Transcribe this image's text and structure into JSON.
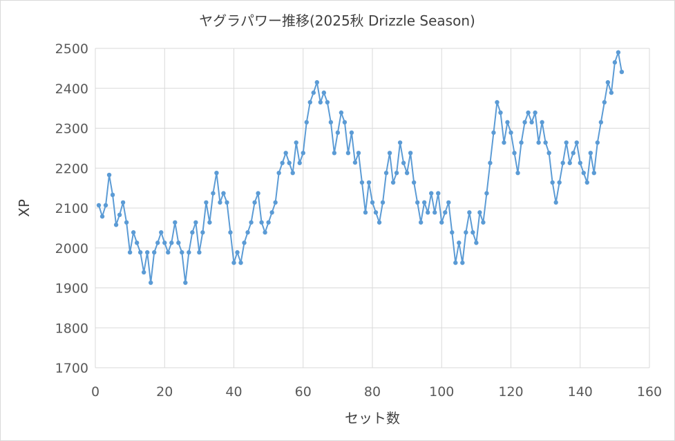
{
  "chart_data": {
    "type": "line",
    "title": "ヤグラパワー推移(2025秋 Drizzle Season)",
    "xlabel": "セット数",
    "ylabel": "XP",
    "xlim": [
      0,
      160
    ],
    "ylim": [
      1700,
      2500
    ],
    "x_ticks": [
      0,
      20,
      40,
      60,
      80,
      100,
      120,
      140,
      160
    ],
    "y_ticks": [
      1700,
      1800,
      1900,
      2000,
      2100,
      2200,
      2300,
      2400,
      2500
    ],
    "grid": true,
    "series_color": "#5b9bd5",
    "series": [
      {
        "name": "XP",
        "values": [
          2107,
          2079,
          2107,
          2183,
          2133,
          2058,
          2083,
          2114,
          2064,
          1989,
          2039,
          2013,
          1989,
          1939,
          1989,
          1913,
          1989,
          2013,
          2039,
          2013,
          1989,
          2013,
          2064,
          2013,
          1989,
          1913,
          1989,
          2039,
          2064,
          1989,
          2039,
          2114,
          2064,
          2137,
          2188,
          2114,
          2137,
          2114,
          2039,
          1963,
          1989,
          1963,
          2013,
          2039,
          2064,
          2114,
          2137,
          2064,
          2039,
          2064,
          2089,
          2114,
          2188,
          2213,
          2238,
          2213,
          2188,
          2264,
          2213,
          2238,
          2315,
          2365,
          2389,
          2415,
          2365,
          2389,
          2365,
          2315,
          2238,
          2289,
          2339,
          2315,
          2238,
          2289,
          2214,
          2238,
          2164,
          2089,
          2164,
          2114,
          2089,
          2064,
          2114,
          2188,
          2238,
          2164,
          2188,
          2264,
          2213,
          2188,
          2238,
          2164,
          2114,
          2064,
          2114,
          2089,
          2137,
          2089,
          2137,
          2064,
          2089,
          2114,
          2039,
          1963,
          2013,
          1963,
          2039,
          2089,
          2039,
          2013,
          2089,
          2064,
          2137,
          2213,
          2289,
          2365,
          2339,
          2264,
          2315,
          2289,
          2238,
          2188,
          2264,
          2315,
          2339,
          2315,
          2339,
          2264,
          2315,
          2264,
          2238,
          2164,
          2114,
          2164,
          2213,
          2264,
          2213,
          2238,
          2264,
          2213,
          2188,
          2164,
          2238,
          2188,
          2264,
          2315,
          2365,
          2415,
          2389,
          2465,
          2490,
          2441
        ]
      }
    ]
  }
}
